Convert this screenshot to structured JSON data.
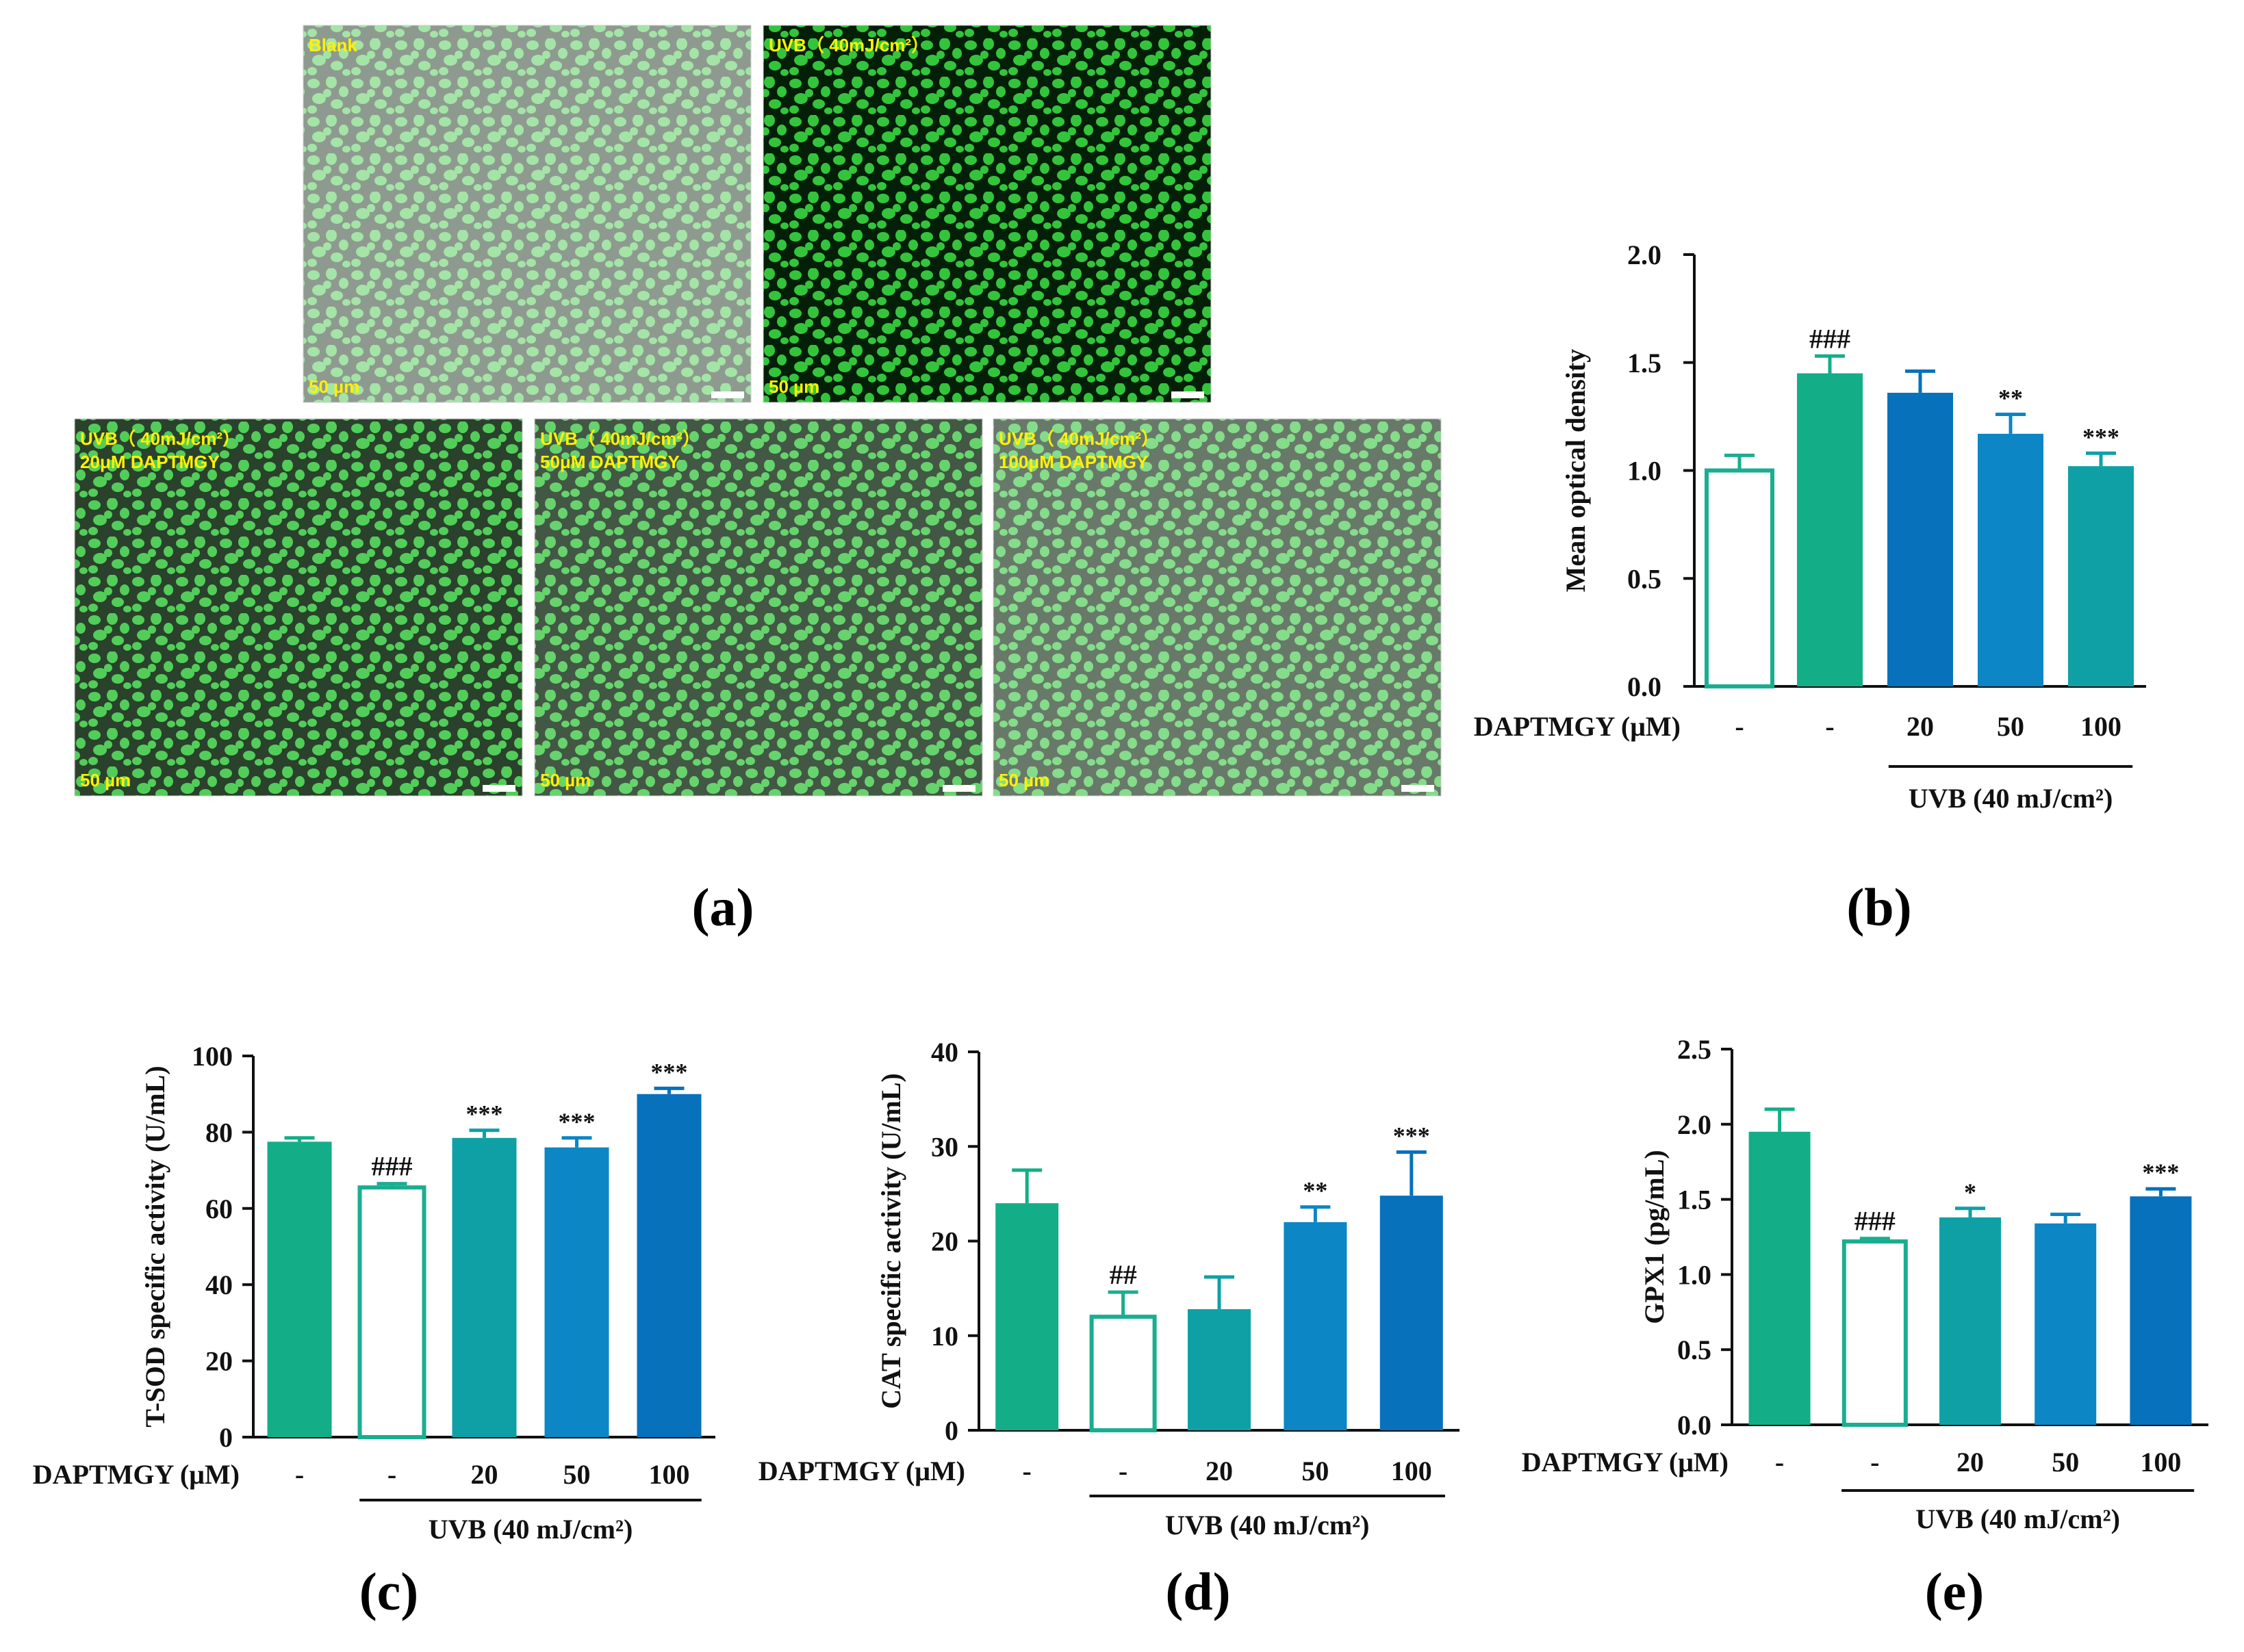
{
  "micrographs": [
    {
      "label_lines": [
        "Blank"
      ],
      "scale": "50 µm",
      "intensity": 0.45
    },
    {
      "label_lines": [
        "UVB（ 40mJ/cm²）"
      ],
      "scale": "50 µm",
      "intensity": 1.0
    },
    {
      "label_lines": [
        "UVB（ 40mJ/cm²）",
        " 20μM DAPTMGY"
      ],
      "scale": "50 µm",
      "intensity": 0.85
    },
    {
      "label_lines": [
        "UVB（ 40mJ/cm²）",
        " 50μM DAPTMGY"
      ],
      "scale": "50 µm",
      "intensity": 0.75
    },
    {
      "label_lines": [
        "UVB（ 40mJ/cm²）",
        "100μM DAPTMGY"
      ],
      "scale": "50 µm",
      "intensity": 0.6
    }
  ],
  "panel_labels": {
    "a": "(a)",
    "b": "(b)",
    "c": "(c)",
    "d": "(d)",
    "e": "(e)"
  },
  "colors": {
    "teal_green": "#13AE88",
    "teal": "#0FA0A6",
    "blue": "#0C86C4",
    "deep_blue": "#0771BC",
    "outline": "#1AAE90",
    "axis": "#111111",
    "micro_text": "#FFF200"
  },
  "chart_data": [
    {
      "id": "b",
      "type": "bar",
      "title": "",
      "ylabel": "Mean optical density",
      "xlabel_prefix": "DAPTMGY (μM)",
      "categories": [
        "-",
        "-",
        "20",
        "50",
        "100"
      ],
      "values": [
        1.0,
        1.45,
        1.36,
        1.17,
        1.02
      ],
      "errors": [
        0.07,
        0.08,
        0.1,
        0.09,
        0.06
      ],
      "annotations": [
        "",
        "###",
        "",
        "**",
        "***"
      ],
      "bar_colors": [
        "outline",
        "#13AE88",
        "#0771BC",
        "#0C86C4",
        "#0FA0A6"
      ],
      "ylim": [
        0,
        2.0
      ],
      "yticks": [
        "0.0",
        "0.5",
        "1.0",
        "1.5",
        "2.0"
      ],
      "ytick_values": [
        0,
        0.5,
        1.0,
        1.5,
        2.0
      ],
      "group_label": "UVB (40 mJ/cm²)"
    },
    {
      "id": "c",
      "type": "bar",
      "title": "",
      "ylabel": "T-SOD specific activity (U/mL)",
      "xlabel_prefix": "DAPTMGY (μM)",
      "categories": [
        "-",
        "-",
        "20",
        "50",
        "100"
      ],
      "values": [
        77.5,
        65.5,
        78.5,
        76.0,
        90.0
      ],
      "errors": [
        1.0,
        1.0,
        2.0,
        2.5,
        1.5
      ],
      "annotations": [
        "",
        "###",
        "***",
        "***",
        "***"
      ],
      "bar_colors": [
        "#13AE88",
        "outline",
        "#0FA0A6",
        "#0C86C4",
        "#0771BC"
      ],
      "ylim": [
        0,
        100
      ],
      "yticks": [
        "0",
        "20",
        "40",
        "60",
        "80",
        "100"
      ],
      "ytick_values": [
        0,
        20,
        40,
        60,
        80,
        100
      ],
      "group_label": "UVB (40 mJ/cm²)"
    },
    {
      "id": "d",
      "type": "bar",
      "title": "",
      "ylabel": "CAT specific activity (U/mL)",
      "xlabel_prefix": "DAPTMGY (μM)",
      "categories": [
        "-",
        "-",
        "20",
        "50",
        "100"
      ],
      "values": [
        24.0,
        12.0,
        12.8,
        22.0,
        24.8
      ],
      "errors": [
        3.5,
        2.6,
        3.4,
        1.6,
        4.6
      ],
      "annotations": [
        "",
        "##",
        "",
        "**",
        "***"
      ],
      "bar_colors": [
        "#13AE88",
        "outline",
        "#0FA0A6",
        "#0C86C4",
        "#0771BC"
      ],
      "ylim": [
        0,
        40
      ],
      "yticks": [
        "0",
        "10",
        "20",
        "30",
        "40"
      ],
      "ytick_values": [
        0,
        10,
        20,
        30,
        40
      ],
      "group_label": "UVB (40 mJ/cm²)"
    },
    {
      "id": "e",
      "type": "bar",
      "title": "",
      "ylabel": "GPX1 (pg/mL)",
      "xlabel_prefix": "DAPTMGY (μM)",
      "categories": [
        "-",
        "-",
        "20",
        "50",
        "100"
      ],
      "values": [
        1.95,
        1.22,
        1.38,
        1.34,
        1.52
      ],
      "errors": [
        0.15,
        0.02,
        0.06,
        0.06,
        0.05
      ],
      "annotations": [
        "",
        "###",
        "*",
        "",
        "***"
      ],
      "bar_colors": [
        "#13AE88",
        "outline",
        "#0FA0A6",
        "#0C86C4",
        "#0771BC"
      ],
      "ylim": [
        0,
        2.5
      ],
      "yticks": [
        "0.0",
        "0.5",
        "1.0",
        "1.5",
        "2.0",
        "2.5"
      ],
      "ytick_values": [
        0,
        0.5,
        1.0,
        1.5,
        2.0,
        2.5
      ],
      "group_label": "UVB (40 mJ/cm²)"
    }
  ]
}
